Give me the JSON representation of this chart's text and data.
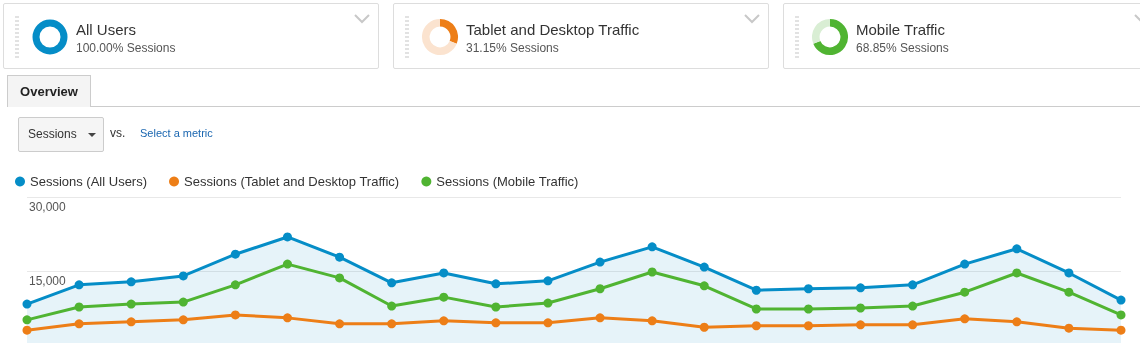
{
  "chart_data": [
    {
      "type": "other",
      "title": "All Users",
      "subtitle": "100.00% Sessions"
    },
    {
      "type": "donut",
      "title": "Tablet and Desktop Traffic",
      "subtitle": "31.15% Sessions",
      "categories": [
        null,
        null
      ],
      "values": [
        31.15,
        68.85
      ],
      "colors": [
        "#ed7e17",
        "#fbe3cf"
      ]
    },
    {
      "type": "donut",
      "title": "Mobile Traffic",
      "subtitle": "68.85% Sessions",
      "categories": [
        null,
        null
      ],
      "values": [
        68.85,
        31.15
      ],
      "colors": [
        "#50b432",
        "#d9eed4"
      ]
    },
    {
      "type": "line",
      "annotations": [
        "Overview",
        "Sessions",
        "vs.",
        "Select a metric"
      ],
      "categories": [
        null,
        null,
        null,
        null,
        null,
        null,
        null,
        null,
        null,
        null,
        null,
        null,
        null,
        null,
        null,
        null,
        null,
        null,
        null,
        null,
        null,
        null
      ],
      "series": [
        {
          "name": "Sessions (All Users)",
          "type": "area",
          "color": "#058dc7",
          "values": [
            8300,
            12200,
            12800,
            14000,
            18400,
            21900,
            17800,
            12600,
            14600,
            12400,
            13000,
            16800,
            19900,
            15800,
            11100,
            11400,
            11600,
            12200,
            16400,
            19500,
            14600,
            9100
          ]
        },
        {
          "name": "Sessions (Tablet and Desktop Traffic)",
          "type": "line",
          "color": "#ed7e17",
          "values": [
            3000,
            4300,
            4700,
            5100,
            6100,
            5500,
            4300,
            4300,
            4900,
            4500,
            4500,
            5500,
            4900,
            3600,
            3900,
            3900,
            4100,
            4100,
            5300,
            4700,
            3400,
            3000
          ]
        },
        {
          "name": "Sessions (Mobile Traffic)",
          "type": "line",
          "color": "#50b432",
          "values": [
            5100,
            7700,
            8300,
            8700,
            12200,
            16400,
            13600,
            7900,
            9700,
            7700,
            8500,
            11400,
            14800,
            12000,
            7300,
            7300,
            7500,
            7900,
            10700,
            14600,
            10700,
            6100
          ]
        }
      ],
      "ylim": [
        0,
        30000
      ],
      "yticks": [
        {
          "value": 15000,
          "label": "15,000"
        },
        {
          "value": 30000,
          "label": "30,000"
        }
      ],
      "grid": "y",
      "legend": "top left",
      "marker": "circle",
      "line_style": "solid"
    }
  ]
}
